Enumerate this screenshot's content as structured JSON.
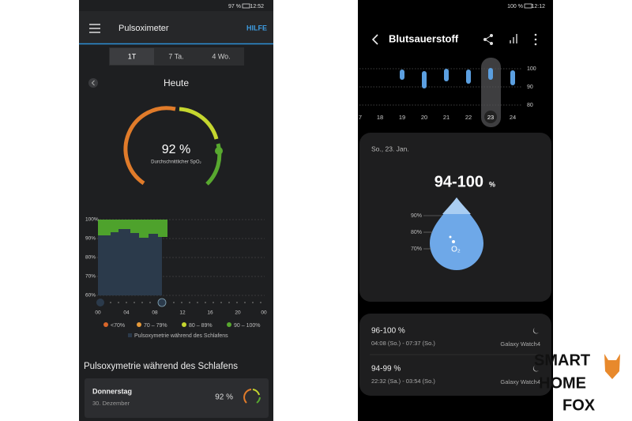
{
  "left_phone": {
    "status_bar": {
      "battery": "97 %",
      "time": "12:52"
    },
    "app_bar": {
      "title": "Pulsoximeter",
      "action": "HILFE"
    },
    "tabs": [
      "1T",
      "7 Ta.",
      "4 Wo."
    ],
    "day": "Heute",
    "gauge": {
      "value": "92 %",
      "label": "Durchschnittlicher SpO₂"
    },
    "chart": {
      "y_labels": [
        "100%",
        "90%",
        "80%",
        "70%",
        "60%"
      ],
      "x_labels": [
        "00",
        "04",
        "08",
        "12",
        "16",
        "20",
        "00"
      ]
    },
    "legend": [
      "<70%",
      "70 – 79%",
      "80 – 89%",
      "90 – 100%"
    ],
    "legend_note": "Pulsoxymetrie während des Schlafens",
    "section_title": "Pulsoxymetrie während des Schlafens",
    "card": {
      "day": "Donnerstag",
      "date": "30. Dezember",
      "value": "92 %"
    }
  },
  "right_phone": {
    "status_bar": {
      "battery": "100 %",
      "time": "12:12"
    },
    "title": "Blutsauerstoff",
    "strip": {
      "y_labels": [
        "100",
        "90",
        "80"
      ],
      "x_labels": [
        "7",
        "18",
        "19",
        "20",
        "21",
        "22",
        "23",
        "24"
      ]
    },
    "date": "So., 23. Jan.",
    "range": "94-100",
    "unit": "%",
    "drop_labels": [
      "90%",
      "80%",
      "70%"
    ],
    "drop_symbol": "O₂",
    "records": [
      {
        "range": "96-100 %",
        "time": "04:08 (So.) - 07:37 (So.)",
        "device": "Galaxy Watch4"
      },
      {
        "range": "94-99 %",
        "time": "22:32 (Sa.) - 03:54 (So.)",
        "device": "Galaxy Watch4"
      }
    ]
  },
  "watermark": [
    "SMART",
    "HOME",
    "FOX"
  ]
}
